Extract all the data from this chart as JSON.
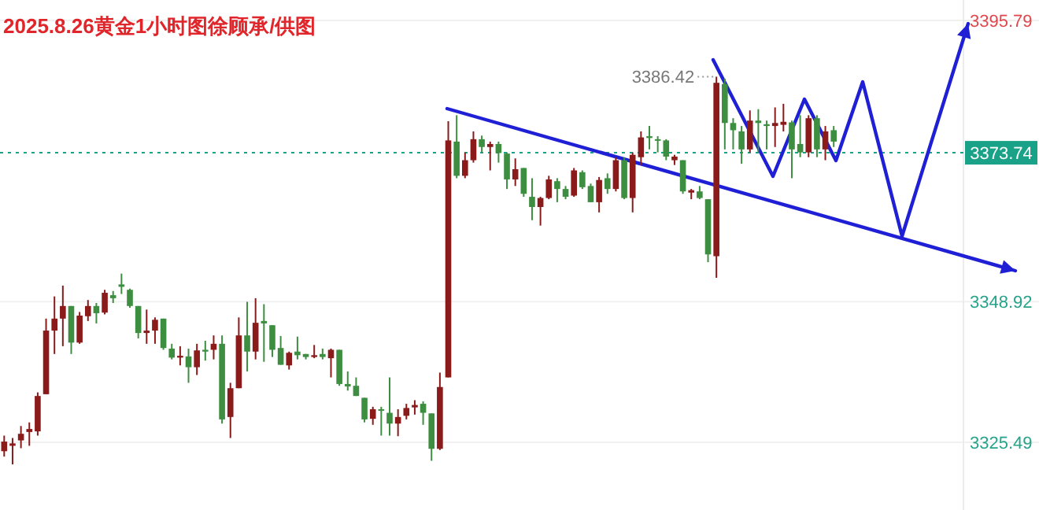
{
  "chart_data": {
    "type": "candlestick",
    "title": "2025.8.26黄金1小时图徐顾承/供图",
    "categories": [
      null,
      null,
      null,
      null,
      null,
      null,
      null,
      null,
      null,
      null,
      null,
      null,
      null,
      null,
      null,
      null,
      null,
      null,
      null,
      null,
      null,
      null,
      null,
      null,
      null,
      null,
      null,
      null,
      null,
      null,
      null,
      null,
      null,
      null,
      null,
      null,
      null,
      null,
      null,
      null,
      null,
      null,
      null,
      null,
      null,
      null,
      null,
      null,
      null,
      null,
      null,
      null,
      null,
      null,
      null,
      null,
      null,
      null,
      null,
      null,
      null,
      null,
      null,
      null,
      null,
      null,
      null,
      null,
      null,
      null,
      null,
      null,
      null,
      null,
      null,
      null,
      null,
      null,
      null,
      null,
      null,
      null,
      null,
      null,
      null,
      null,
      null,
      null,
      null,
      null,
      null,
      null,
      null,
      null,
      null,
      null,
      null,
      null,
      null,
      null,
      null,
      null,
      null,
      null,
      null,
      null,
      null,
      null,
      null,
      null,
      null,
      null,
      null,
      null,
      null,
      null,
      null,
      null,
      null,
      null,
      null,
      null,
      null,
      null
    ],
    "ohlc": [
      [
        3324.0,
        3326.6,
        3323.1,
        3325.6
      ],
      [
        3324.9,
        3326.2,
        3321.8,
        3325.3
      ],
      [
        3325.8,
        3328.2,
        3324.5,
        3326.9
      ],
      [
        3327.2,
        3328.8,
        3324.9,
        3327.7
      ],
      [
        3327.3,
        3333.8,
        3326.6,
        3333.2
      ],
      [
        3333.5,
        3346.1,
        3333.5,
        3344.1
      ],
      [
        3344.1,
        3349.8,
        3340.2,
        3346.1
      ],
      [
        3346.1,
        3351.6,
        3341.5,
        3348.2
      ],
      [
        3348.2,
        3348.2,
        3340.2,
        3342.1
      ],
      [
        3342.1,
        3347.2,
        3341.9,
        3346.6
      ],
      [
        3346.5,
        3349.2,
        3345.7,
        3348.2
      ],
      [
        3348.2,
        3348.7,
        3345.3,
        3347.0
      ],
      [
        3347.1,
        3350.9,
        3346.8,
        3350.4
      ],
      [
        3350.0,
        3350.7,
        3348.7,
        3349.5
      ],
      [
        3351.8,
        3353.6,
        3350.2,
        3351.4
      ],
      [
        3350.9,
        3351.1,
        3347.9,
        3348.2
      ],
      [
        3348.2,
        3348.2,
        3342.8,
        3343.7
      ],
      [
        3343.7,
        3347.6,
        3341.9,
        3344.1
      ],
      [
        3344.1,
        3346.3,
        3341.9,
        3345.9
      ],
      [
        3346.1,
        3346.1,
        3340.9,
        3341.2
      ],
      [
        3341.1,
        3341.9,
        3339.3,
        3339.6
      ],
      [
        3339.6,
        3341.5,
        3338.3,
        3339.9
      ],
      [
        3339.8,
        3341.1,
        3335.4,
        3338.0
      ],
      [
        3338.0,
        3341.9,
        3336.7,
        3340.8
      ],
      [
        3340.9,
        3342.4,
        3339.1,
        3340.6
      ],
      [
        3340.9,
        3343.3,
        3339.3,
        3341.9
      ],
      [
        3341.9,
        3343.3,
        3328.6,
        3329.3
      ],
      [
        3329.7,
        3335.4,
        3326.2,
        3334.5
      ],
      [
        3334.5,
        3346.3,
        3334.5,
        3343.3
      ],
      [
        3343.3,
        3348.9,
        3337.3,
        3340.6
      ],
      [
        3340.6,
        3349.5,
        3339.3,
        3345.4
      ],
      [
        3345.7,
        3348.5,
        3338.9,
        3345.3
      ],
      [
        3345.0,
        3345.0,
        3339.7,
        3340.9
      ],
      [
        3341.2,
        3343.2,
        3338.4,
        3338.4
      ],
      [
        3338.3,
        3340.6,
        3337.6,
        3340.4
      ],
      [
        3340.6,
        3343.1,
        3339.3,
        3340.0
      ],
      [
        3340.2,
        3340.2,
        3339.3,
        3339.7
      ],
      [
        3339.7,
        3341.7,
        3339.5,
        3340.0
      ],
      [
        3340.2,
        3341.1,
        3339.3,
        3339.7
      ],
      [
        3339.5,
        3341.1,
        3336.3,
        3340.9
      ],
      [
        3340.9,
        3340.9,
        3334.9,
        3335.2
      ],
      [
        3335.2,
        3337.3,
        3334.1,
        3334.8
      ],
      [
        3334.9,
        3336.3,
        3333.2,
        3333.2
      ],
      [
        3332.9,
        3332.9,
        3328.8,
        3329.3
      ],
      [
        3329.4,
        3331.4,
        3328.4,
        3331.0
      ],
      [
        3331.0,
        3331.4,
        3326.6,
        3330.8
      ],
      [
        3330.4,
        3336.3,
        3326.6,
        3328.6
      ],
      [
        3328.6,
        3331.0,
        3326.5,
        3329.7
      ],
      [
        3329.9,
        3331.9,
        3329.3,
        3331.2
      ],
      [
        3331.3,
        3332.5,
        3330.1,
        3331.7
      ],
      [
        3331.9,
        3332.3,
        3328.4,
        3330.4
      ],
      [
        3330.3,
        3330.3,
        3322.4,
        3324.4
      ],
      [
        3324.4,
        3337.1,
        3324.2,
        3334.7
      ],
      [
        3336.3,
        3379.0,
        3336.3,
        3375.8
      ],
      [
        3375.6,
        3380.0,
        3369.5,
        3369.9
      ],
      [
        3369.9,
        3373.8,
        3369.5,
        3372.5
      ],
      [
        3372.5,
        3377.3,
        3372.1,
        3376.0
      ],
      [
        3376.0,
        3376.6,
        3373.8,
        3374.7
      ],
      [
        3374.7,
        3375.6,
        3370.8,
        3375.2
      ],
      [
        3375.2,
        3375.6,
        3372.1,
        3373.7
      ],
      [
        3373.6,
        3373.8,
        3367.7,
        3369.3
      ],
      [
        3369.3,
        3372.8,
        3368.2,
        3371.0
      ],
      [
        3371.2,
        3371.2,
        3366.4,
        3366.9
      ],
      [
        3366.4,
        3369.5,
        3362.5,
        3364.7
      ],
      [
        3364.7,
        3366.4,
        3361.6,
        3366.2
      ],
      [
        3366.2,
        3369.9,
        3366.0,
        3369.3
      ],
      [
        3369.0,
        3369.5,
        3365.5,
        3367.7
      ],
      [
        3367.7,
        3368.2,
        3366.0,
        3366.4
      ],
      [
        3366.6,
        3371.2,
        3366.4,
        3370.8
      ],
      [
        3370.5,
        3370.8,
        3367.7,
        3368.0
      ],
      [
        3368.2,
        3368.6,
        3365.5,
        3365.5
      ],
      [
        3365.5,
        3369.7,
        3363.8,
        3369.2
      ],
      [
        3369.5,
        3370.3,
        3366.9,
        3367.7
      ],
      [
        3367.7,
        3373.0,
        3367.3,
        3372.5
      ],
      [
        3372.5,
        3373.0,
        3366.0,
        3366.2
      ],
      [
        3366.2,
        3373.8,
        3363.8,
        3373.4
      ],
      [
        3373.0,
        3377.3,
        3371.7,
        3376.3
      ],
      [
        3376.5,
        3378.2,
        3374.3,
        3376.2
      ],
      [
        3376.0,
        3376.5,
        3373.8,
        3375.8
      ],
      [
        3375.8,
        3376.0,
        3372.5,
        3373.1
      ],
      [
        3372.5,
        3373.4,
        3371.7,
        3373.1
      ],
      [
        3372.5,
        3372.5,
        3366.9,
        3367.3
      ],
      [
        3367.1,
        3367.7,
        3366.0,
        3367.5
      ],
      [
        3367.3,
        3368.2,
        3366.0,
        3366.2
      ],
      [
        3366.0,
        3366.0,
        3355.5,
        3356.8
      ],
      [
        3356.5,
        3386.42,
        3352.9,
        3385.4
      ],
      [
        3385.2,
        3386.1,
        3374.3,
        3378.7
      ],
      [
        3378.7,
        3379.5,
        3374.3,
        3377.5
      ],
      [
        3377.3,
        3378.2,
        3371.9,
        3374.3
      ],
      [
        3374.3,
        3380.8,
        3373.8,
        3379.1
      ],
      [
        3379.1,
        3381.0,
        3373.8,
        3378.7
      ],
      [
        3378.5,
        3379.1,
        3374.3,
        3378.2
      ],
      [
        3378.2,
        3381.3,
        3374.7,
        3378.7
      ],
      [
        3378.4,
        3381.9,
        3377.3,
        3378.9
      ],
      [
        3378.8,
        3379.1,
        3369.5,
        3374.3
      ],
      [
        3375.2,
        3380.0,
        3373.0,
        3373.8
      ],
      [
        3373.8,
        3380.0,
        3373.0,
        3379.5
      ],
      [
        3379.5,
        3380.0,
        3373.0,
        3374.3
      ],
      [
        3374.3,
        3378.2,
        3372.5,
        3377.3
      ],
      [
        3377.5,
        3378.2,
        3374.7,
        3375.6
      ],
      null,
      null,
      null,
      null,
      null,
      null,
      null,
      null,
      null,
      null,
      null,
      null,
      null,
      null,
      null,
      null,
      null,
      null,
      null,
      null,
      null,
      null,
      null,
      null
    ],
    "colors": [
      "#8b1a1a",
      "#8b1a1a",
      "#8b1a1a",
      "#8b1a1a",
      "#8b1a1a",
      "#8b1a1a",
      "#8b1a1a",
      "#8b1a1a",
      "#3e8e41",
      "#8b1a1a",
      "#8b1a1a",
      "#3e8e41",
      "#8b1a1a",
      "#3e8e41",
      "#3e8e41",
      "#3e8e41",
      "#3e8e41",
      "#8b1a1a",
      "#8b1a1a",
      "#3e8e41",
      "#3e8e41",
      "#8b1a1a",
      "#3e8e41",
      "#8b1a1a",
      "#3e8e41",
      "#8b1a1a",
      "#3e8e41",
      "#8b1a1a",
      "#8b1a1a",
      "#3e8e41",
      "#8b1a1a",
      "#3e8e41",
      "#3e8e41",
      "#3e8e41",
      "#8b1a1a",
      "#3e8e41",
      "#3e8e41",
      "#8b1a1a",
      "#3e8e41",
      "#8b1a1a",
      "#3e8e41",
      "#3e8e41",
      "#3e8e41",
      "#3e8e41",
      "#8b1a1a",
      "#3e8e41",
      "#3e8e41",
      "#8b1a1a",
      "#8b1a1a",
      "#8b1a1a",
      "#3e8e41",
      "#3e8e41",
      "#8b1a1a",
      "#8b1a1a",
      "#3e8e41",
      "#8b1a1a",
      "#8b1a1a",
      "#3e8e41",
      "#8b1a1a",
      "#3e8e41",
      "#3e8e41",
      "#8b1a1a",
      "#3e8e41",
      "#3e8e41",
      "#8b1a1a",
      "#8b1a1a",
      "#3e8e41",
      "#3e8e41",
      "#8b1a1a",
      "#3e8e41",
      "#3e8e41",
      "#8b1a1a",
      "#3e8e41",
      "#8b1a1a",
      "#3e8e41",
      "#8b1a1a",
      "#8b1a1a",
      "#3e8e41",
      "#3e8e41",
      "#3e8e41",
      "#8b1a1a",
      "#3e8e41",
      "#8b1a1a",
      "#3e8e41",
      "#3e8e41",
      "#8b1a1a",
      "#3e8e41",
      "#3e8e41",
      "#3e8e41",
      "#8b1a1a",
      "#3e8e41",
      "#3e8e41",
      "#8b1a1a",
      "#8b1a1a",
      "#3e8e41",
      "#3e8e41",
      "#8b1a1a",
      "#3e8e41",
      "#8b1a1a",
      "#3e8e41",
      null,
      null,
      null,
      null,
      null,
      null,
      null,
      null,
      null,
      null,
      null,
      null,
      null,
      null,
      null,
      null,
      null,
      null,
      null,
      null,
      null,
      null,
      null,
      null
    ],
    "ylim": [
      3314.2,
      3399.2
    ],
    "yticks": [
      3395.79,
      3348.92,
      3325.49
    ],
    "grid": "y",
    "ref_lines": [
      {
        "axis": "y",
        "value": 3373.74,
        "label": "3373.74",
        "color": "#1aa289",
        "line_style": "dotted"
      }
    ],
    "annotations": [
      "3386.42"
    ]
  }
}
